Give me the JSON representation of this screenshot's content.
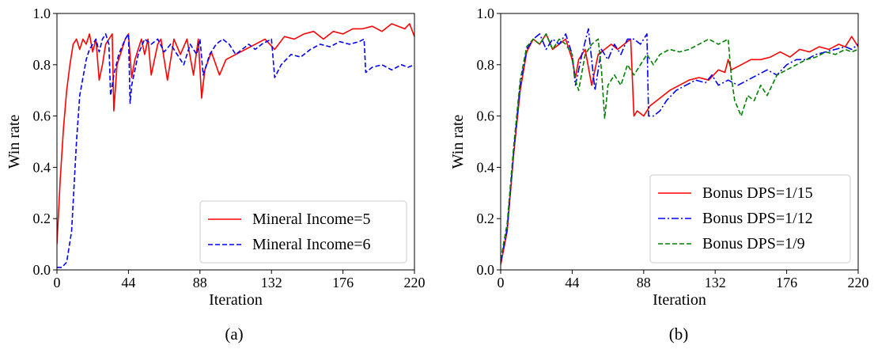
{
  "chart_data": [
    {
      "type": "line",
      "caption": "(a)",
      "xlabel": "Iteration",
      "ylabel": "Win rate",
      "xlim": [
        0,
        220
      ],
      "ylim": [
        0,
        1.0
      ],
      "xticks": [
        "0",
        "44",
        "88",
        "132",
        "176",
        "220"
      ],
      "yticks": [
        "0.0",
        "0.2",
        "0.4",
        "0.6",
        "0.8",
        "1.0"
      ],
      "legend_position": "lower-right",
      "series": [
        {
          "name": "Mineral Income=5",
          "color": "#ff0000",
          "style": "solid",
          "x": [
            0,
            2,
            4,
            6,
            8,
            10,
            12,
            14,
            16,
            18,
            20,
            22,
            24,
            26,
            28,
            30,
            32,
            34,
            35,
            37,
            40,
            42,
            44,
            46,
            48,
            50,
            52,
            54,
            56,
            58,
            62,
            64,
            68,
            72,
            76,
            80,
            84,
            87,
            89,
            91,
            95,
            100,
            104,
            110,
            116,
            122,
            128,
            134,
            140,
            146,
            152,
            158,
            164,
            170,
            176,
            182,
            188,
            194,
            200,
            206,
            210,
            214,
            217,
            220
          ],
          "y": [
            0.1,
            0.35,
            0.55,
            0.7,
            0.8,
            0.88,
            0.9,
            0.86,
            0.9,
            0.88,
            0.92,
            0.85,
            0.9,
            0.74,
            0.8,
            0.88,
            0.9,
            0.92,
            0.62,
            0.8,
            0.86,
            0.9,
            0.92,
            0.75,
            0.82,
            0.86,
            0.9,
            0.84,
            0.9,
            0.76,
            0.88,
            0.9,
            0.74,
            0.9,
            0.84,
            0.9,
            0.76,
            0.9,
            0.67,
            0.78,
            0.85,
            0.76,
            0.82,
            0.84,
            0.86,
            0.88,
            0.9,
            0.86,
            0.91,
            0.9,
            0.92,
            0.93,
            0.9,
            0.93,
            0.92,
            0.94,
            0.94,
            0.95,
            0.93,
            0.96,
            0.95,
            0.94,
            0.96,
            0.91
          ]
        },
        {
          "name": "Mineral Income=6",
          "color": "#0000ff",
          "style": "dashed",
          "x": [
            0,
            3,
            6,
            9,
            12,
            14,
            16,
            18,
            20,
            22,
            24,
            26,
            28,
            30,
            32,
            33,
            35,
            38,
            42,
            44,
            45,
            46,
            50,
            54,
            58,
            62,
            66,
            70,
            74,
            78,
            82,
            86,
            88,
            90,
            94,
            98,
            102,
            106,
            110,
            114,
            118,
            122,
            126,
            132,
            134,
            138,
            144,
            150,
            156,
            162,
            168,
            174,
            180,
            186,
            189,
            190,
            194,
            200,
            206,
            212,
            216,
            220
          ],
          "y": [
            0.01,
            0.01,
            0.03,
            0.15,
            0.5,
            0.68,
            0.75,
            0.82,
            0.86,
            0.88,
            0.9,
            0.85,
            0.9,
            0.92,
            0.88,
            0.68,
            0.76,
            0.84,
            0.9,
            0.92,
            0.65,
            0.72,
            0.84,
            0.9,
            0.88,
            0.9,
            0.85,
            0.88,
            0.84,
            0.8,
            0.88,
            0.84,
            0.9,
            0.76,
            0.84,
            0.88,
            0.9,
            0.88,
            0.84,
            0.86,
            0.88,
            0.86,
            0.88,
            0.9,
            0.75,
            0.8,
            0.84,
            0.83,
            0.86,
            0.88,
            0.87,
            0.89,
            0.88,
            0.89,
            0.9,
            0.77,
            0.79,
            0.8,
            0.78,
            0.8,
            0.79,
            0.8
          ]
        }
      ]
    },
    {
      "type": "line",
      "caption": "(b)",
      "xlabel": "Iteration",
      "ylabel": "Win rate",
      "xlim": [
        0,
        220
      ],
      "ylim": [
        0,
        1.0
      ],
      "xticks": [
        "0",
        "44",
        "88",
        "132",
        "176",
        "220"
      ],
      "yticks": [
        "0.0",
        "0.2",
        "0.4",
        "0.6",
        "0.8",
        "1.0"
      ],
      "legend_position": "lower-right",
      "series": [
        {
          "name": "Bonus DPS=1/15",
          "color": "#ff0000",
          "style": "solid",
          "x": [
            0,
            4,
            8,
            12,
            16,
            20,
            24,
            28,
            32,
            36,
            40,
            44,
            46,
            48,
            52,
            56,
            60,
            64,
            68,
            72,
            76,
            80,
            82,
            84,
            88,
            92,
            96,
            100,
            104,
            110,
            116,
            122,
            128,
            134,
            138,
            140,
            142,
            148,
            154,
            160,
            166,
            172,
            178,
            184,
            190,
            196,
            202,
            208,
            212,
            216,
            220
          ],
          "y": [
            0.02,
            0.15,
            0.45,
            0.7,
            0.85,
            0.9,
            0.88,
            0.92,
            0.86,
            0.88,
            0.9,
            0.82,
            0.75,
            0.82,
            0.86,
            0.72,
            0.84,
            0.86,
            0.88,
            0.86,
            0.88,
            0.9,
            0.6,
            0.62,
            0.6,
            0.64,
            0.66,
            0.68,
            0.7,
            0.72,
            0.74,
            0.75,
            0.74,
            0.78,
            0.77,
            0.82,
            0.78,
            0.8,
            0.82,
            0.82,
            0.83,
            0.85,
            0.83,
            0.86,
            0.85,
            0.87,
            0.86,
            0.88,
            0.87,
            0.91,
            0.87
          ]
        },
        {
          "name": "Bonus DPS=1/12",
          "color": "#0000ff",
          "style": "dashdot",
          "x": [
            0,
            4,
            8,
            12,
            16,
            20,
            24,
            28,
            32,
            36,
            40,
            44,
            46,
            50,
            54,
            58,
            62,
            66,
            70,
            74,
            78,
            82,
            86,
            90,
            91,
            94,
            98,
            102,
            108,
            114,
            120,
            126,
            130,
            134,
            140,
            146,
            152,
            158,
            164,
            170,
            176,
            182,
            188,
            194,
            200,
            206,
            212,
            216,
            220
          ],
          "y": [
            0.03,
            0.16,
            0.46,
            0.72,
            0.86,
            0.9,
            0.92,
            0.86,
            0.9,
            0.88,
            0.92,
            0.84,
            0.72,
            0.84,
            0.94,
            0.7,
            0.86,
            0.82,
            0.88,
            0.84,
            0.9,
            0.9,
            0.88,
            0.92,
            0.6,
            0.6,
            0.62,
            0.66,
            0.7,
            0.72,
            0.74,
            0.73,
            0.76,
            0.72,
            0.74,
            0.72,
            0.74,
            0.76,
            0.78,
            0.76,
            0.8,
            0.82,
            0.82,
            0.84,
            0.85,
            0.86,
            0.87,
            0.86,
            0.88
          ]
        },
        {
          "name": "Bonus DPS=1/9",
          "color": "#008000",
          "style": "dashed",
          "x": [
            0,
            4,
            8,
            12,
            16,
            20,
            24,
            28,
            32,
            36,
            40,
            44,
            46,
            48,
            52,
            56,
            60,
            62,
            64,
            66,
            70,
            74,
            78,
            82,
            86,
            90,
            94,
            98,
            104,
            110,
            116,
            122,
            128,
            134,
            140,
            142,
            144,
            148,
            152,
            156,
            160,
            164,
            170,
            176,
            182,
            188,
            194,
            200,
            206,
            212,
            216,
            220
          ],
          "y": [
            0.04,
            0.18,
            0.48,
            0.74,
            0.87,
            0.9,
            0.88,
            0.92,
            0.86,
            0.9,
            0.88,
            0.84,
            0.74,
            0.7,
            0.84,
            0.88,
            0.9,
            0.78,
            0.59,
            0.72,
            0.76,
            0.72,
            0.8,
            0.76,
            0.8,
            0.84,
            0.8,
            0.84,
            0.86,
            0.85,
            0.86,
            0.88,
            0.9,
            0.88,
            0.9,
            0.75,
            0.66,
            0.6,
            0.68,
            0.66,
            0.72,
            0.68,
            0.76,
            0.78,
            0.8,
            0.82,
            0.83,
            0.85,
            0.84,
            0.86,
            0.85,
            0.86
          ]
        }
      ]
    }
  ]
}
